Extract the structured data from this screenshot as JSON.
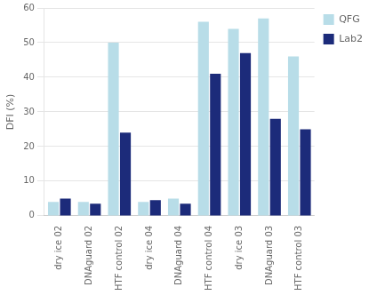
{
  "chart_data": {
    "type": "bar",
    "categories": [
      "dry ice 02",
      "DNAguard 02",
      "HTF control 02",
      "dry ice 04",
      "DNAguard 04",
      "HTF control 04",
      "dry ice 03",
      "DNAguard 03",
      "HTF control 03"
    ],
    "series": [
      {
        "name": "QFG",
        "color": "#b8dde8",
        "values": [
          4,
          4,
          50,
          4,
          5,
          56,
          54,
          57,
          46
        ]
      },
      {
        "name": "Lab2",
        "color": "#1c2b7a",
        "values": [
          5,
          3.5,
          24,
          4.5,
          3.5,
          41,
          47,
          28,
          25
        ]
      }
    ],
    "ylabel": "DFI (%)",
    "ylim": [
      0,
      60
    ],
    "yticks": [
      0,
      10,
      20,
      30,
      40,
      50,
      60
    ],
    "grid": true,
    "legend": "right"
  }
}
